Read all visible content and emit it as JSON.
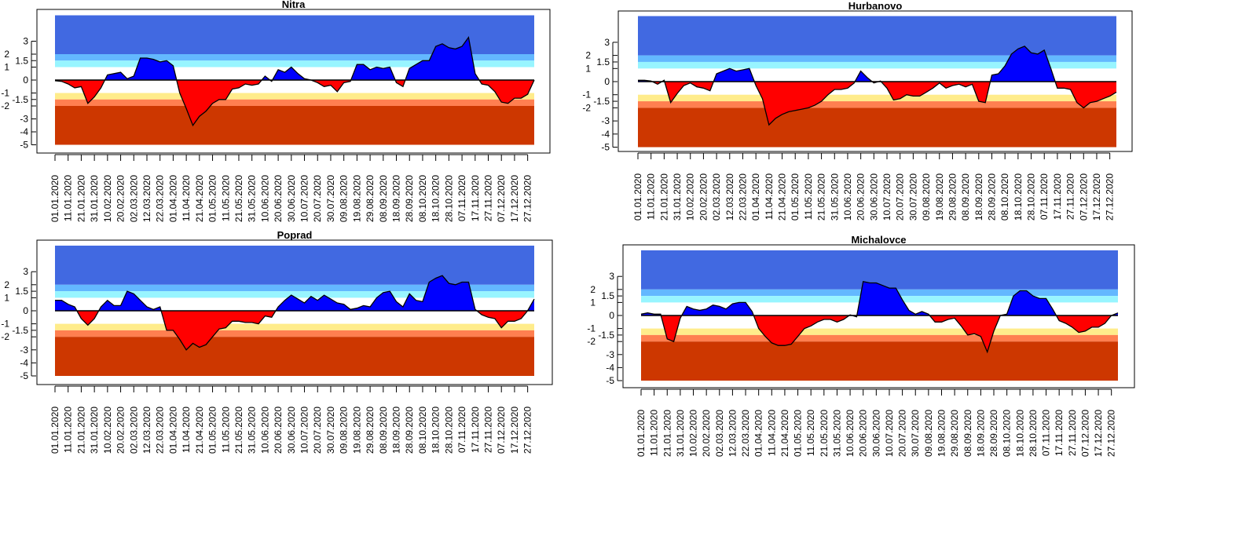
{
  "chart_data": {
    "type": "area",
    "ylim": [
      -5,
      5
    ],
    "y_ticks": [
      "3",
      "2",
      "1.5",
      "1",
      "0",
      "-1",
      "-1.5",
      "-2",
      "-3",
      "-4",
      "-5"
    ],
    "y_tick_values": [
      3,
      2,
      1.5,
      1,
      0,
      -1,
      -1.5,
      -2,
      -3,
      -4,
      -5
    ],
    "x_tick_labels": [
      "01.01.2020",
      "11.01.2020",
      "21.01.2020",
      "31.01.2020",
      "10.02.2020",
      "20.02.2020",
      "02.03.2020",
      "12.03.2020",
      "22.03.2020",
      "01.04.2020",
      "11.04.2020",
      "21.04.2020",
      "01.05.2020",
      "11.05.2020",
      "21.05.2020",
      "31.05.2020",
      "10.06.2020",
      "20.06.2020",
      "30.06.2020",
      "10.07.2020",
      "20.07.2020",
      "30.07.2020",
      "09.08.2020",
      "19.08.2020",
      "29.08.2020",
      "08.09.2020",
      "18.09.2020",
      "28.09.2020",
      "08.10.2020",
      "18.10.2020",
      "28.10.2020",
      "07.11.2020",
      "17.11.2020",
      "27.11.2020",
      "07.12.2020",
      "17.12.2020",
      "27.12.2020"
    ],
    "x_day_step": 5,
    "bands": [
      {
        "from": 2,
        "to": 5,
        "color": "#4169E1"
      },
      {
        "from": 1.5,
        "to": 2,
        "color": "#63B8FF"
      },
      {
        "from": 1,
        "to": 1.5,
        "color": "#98F5FF"
      },
      {
        "from": -1.5,
        "to": -1,
        "color": "#FFEC8B"
      },
      {
        "from": -2,
        "to": -1.5,
        "color": "#FF7F50"
      },
      {
        "from": -5,
        "to": -2,
        "color": "#CD3700"
      }
    ],
    "positive_color": "#0000FF",
    "negative_color": "#FF0000",
    "panels": [
      {
        "title": "Nitra",
        "values": [
          -0.05,
          -0.1,
          -0.3,
          -0.6,
          -0.5,
          -1.8,
          -1.3,
          -0.6,
          0.4,
          0.5,
          0.6,
          0.1,
          0.3,
          1.7,
          1.7,
          1.6,
          1.4,
          1.5,
          1.1,
          -1.0,
          -2.2,
          -3.5,
          -2.8,
          -2.4,
          -1.8,
          -1.5,
          -1.5,
          -0.7,
          -0.6,
          -0.3,
          -0.4,
          -0.3,
          0.3,
          -0.1,
          0.8,
          0.6,
          1.0,
          0.5,
          0.1,
          0.0,
          -0.2,
          -0.5,
          -0.4,
          -0.9,
          -0.2,
          -0.1,
          1.2,
          1.2,
          0.8,
          1.0,
          0.9,
          1.0,
          -0.2,
          -0.5,
          0.9,
          1.2,
          1.5,
          1.5,
          2.6,
          2.8,
          2.5,
          2.4,
          2.6,
          3.3,
          0.5,
          -0.3,
          -0.4,
          -0.9,
          -1.7,
          -1.8,
          -1.4,
          -1.4,
          -1.1,
          0.0
        ]
      },
      {
        "title": "Hurbanovo",
        "values": [
          0.1,
          0.1,
          0.05,
          -0.2,
          0.1,
          -1.6,
          -0.9,
          -0.3,
          -0.1,
          -0.4,
          -0.5,
          -0.7,
          0.6,
          0.8,
          1.0,
          0.8,
          0.9,
          1.0,
          -0.3,
          -1.3,
          -3.3,
          -2.8,
          -2.5,
          -2.3,
          -2.2,
          -2.1,
          -2.0,
          -1.8,
          -1.5,
          -1.0,
          -0.6,
          -0.6,
          -0.5,
          -0.1,
          0.8,
          0.3,
          -0.1,
          0.05,
          -0.5,
          -1.4,
          -1.3,
          -1.0,
          -1.1,
          -1.1,
          -0.8,
          -0.5,
          -0.1,
          -0.5,
          -0.3,
          -0.2,
          -0.4,
          -0.2,
          -1.5,
          -1.6,
          0.5,
          0.6,
          1.2,
          2.1,
          2.5,
          2.7,
          2.2,
          2.1,
          2.4,
          1.0,
          -0.5,
          -0.5,
          -0.6,
          -1.6,
          -2.0,
          -1.6,
          -1.5,
          -1.3,
          -1.1,
          -0.8
        ]
      },
      {
        "title": "Poprad",
        "values": [
          0.8,
          0.8,
          0.5,
          0.3,
          -0.6,
          -1.1,
          -0.6,
          0.3,
          0.8,
          0.4,
          0.4,
          1.5,
          1.3,
          0.8,
          0.3,
          0.1,
          0.3,
          -1.5,
          -1.5,
          -2.2,
          -3.0,
          -2.5,
          -2.8,
          -2.6,
          -2.0,
          -1.4,
          -1.3,
          -0.8,
          -0.8,
          -0.9,
          -0.9,
          -1.0,
          -0.4,
          -0.5,
          0.3,
          0.8,
          1.2,
          0.9,
          0.6,
          1.1,
          0.8,
          1.2,
          0.9,
          0.6,
          0.5,
          0.1,
          0.2,
          0.4,
          0.3,
          1.0,
          1.4,
          1.5,
          0.7,
          0.3,
          1.3,
          0.8,
          0.7,
          2.2,
          2.5,
          2.7,
          2.1,
          2.0,
          2.2,
          2.2,
          0.1,
          -0.3,
          -0.5,
          -0.6,
          -1.3,
          -0.8,
          -0.8,
          -0.6,
          0.0,
          0.9
        ]
      },
      {
        "title": "Michalovce",
        "values": [
          0.1,
          0.2,
          0.1,
          0.1,
          -1.8,
          -2.0,
          -0.2,
          0.7,
          0.5,
          0.4,
          0.5,
          0.8,
          0.7,
          0.5,
          0.9,
          1.0,
          1.0,
          0.3,
          -1.0,
          -1.6,
          -2.1,
          -2.3,
          -2.3,
          -2.2,
          -1.6,
          -1.0,
          -0.8,
          -0.5,
          -0.3,
          -0.3,
          -0.5,
          -0.3,
          0.05,
          -0.1,
          2.6,
          2.5,
          2.5,
          2.3,
          2.1,
          2.1,
          1.2,
          0.4,
          0.1,
          0.3,
          0.1,
          -0.5,
          -0.5,
          -0.3,
          -0.2,
          -0.8,
          -1.5,
          -1.4,
          -1.6,
          -2.8,
          -1.2,
          0.0,
          0.1,
          1.5,
          1.9,
          1.9,
          1.5,
          1.3,
          1.3,
          0.5,
          -0.4,
          -0.6,
          -0.9,
          -1.3,
          -1.2,
          -0.9,
          -0.9,
          -0.6,
          0.0,
          0.2
        ]
      }
    ]
  }
}
